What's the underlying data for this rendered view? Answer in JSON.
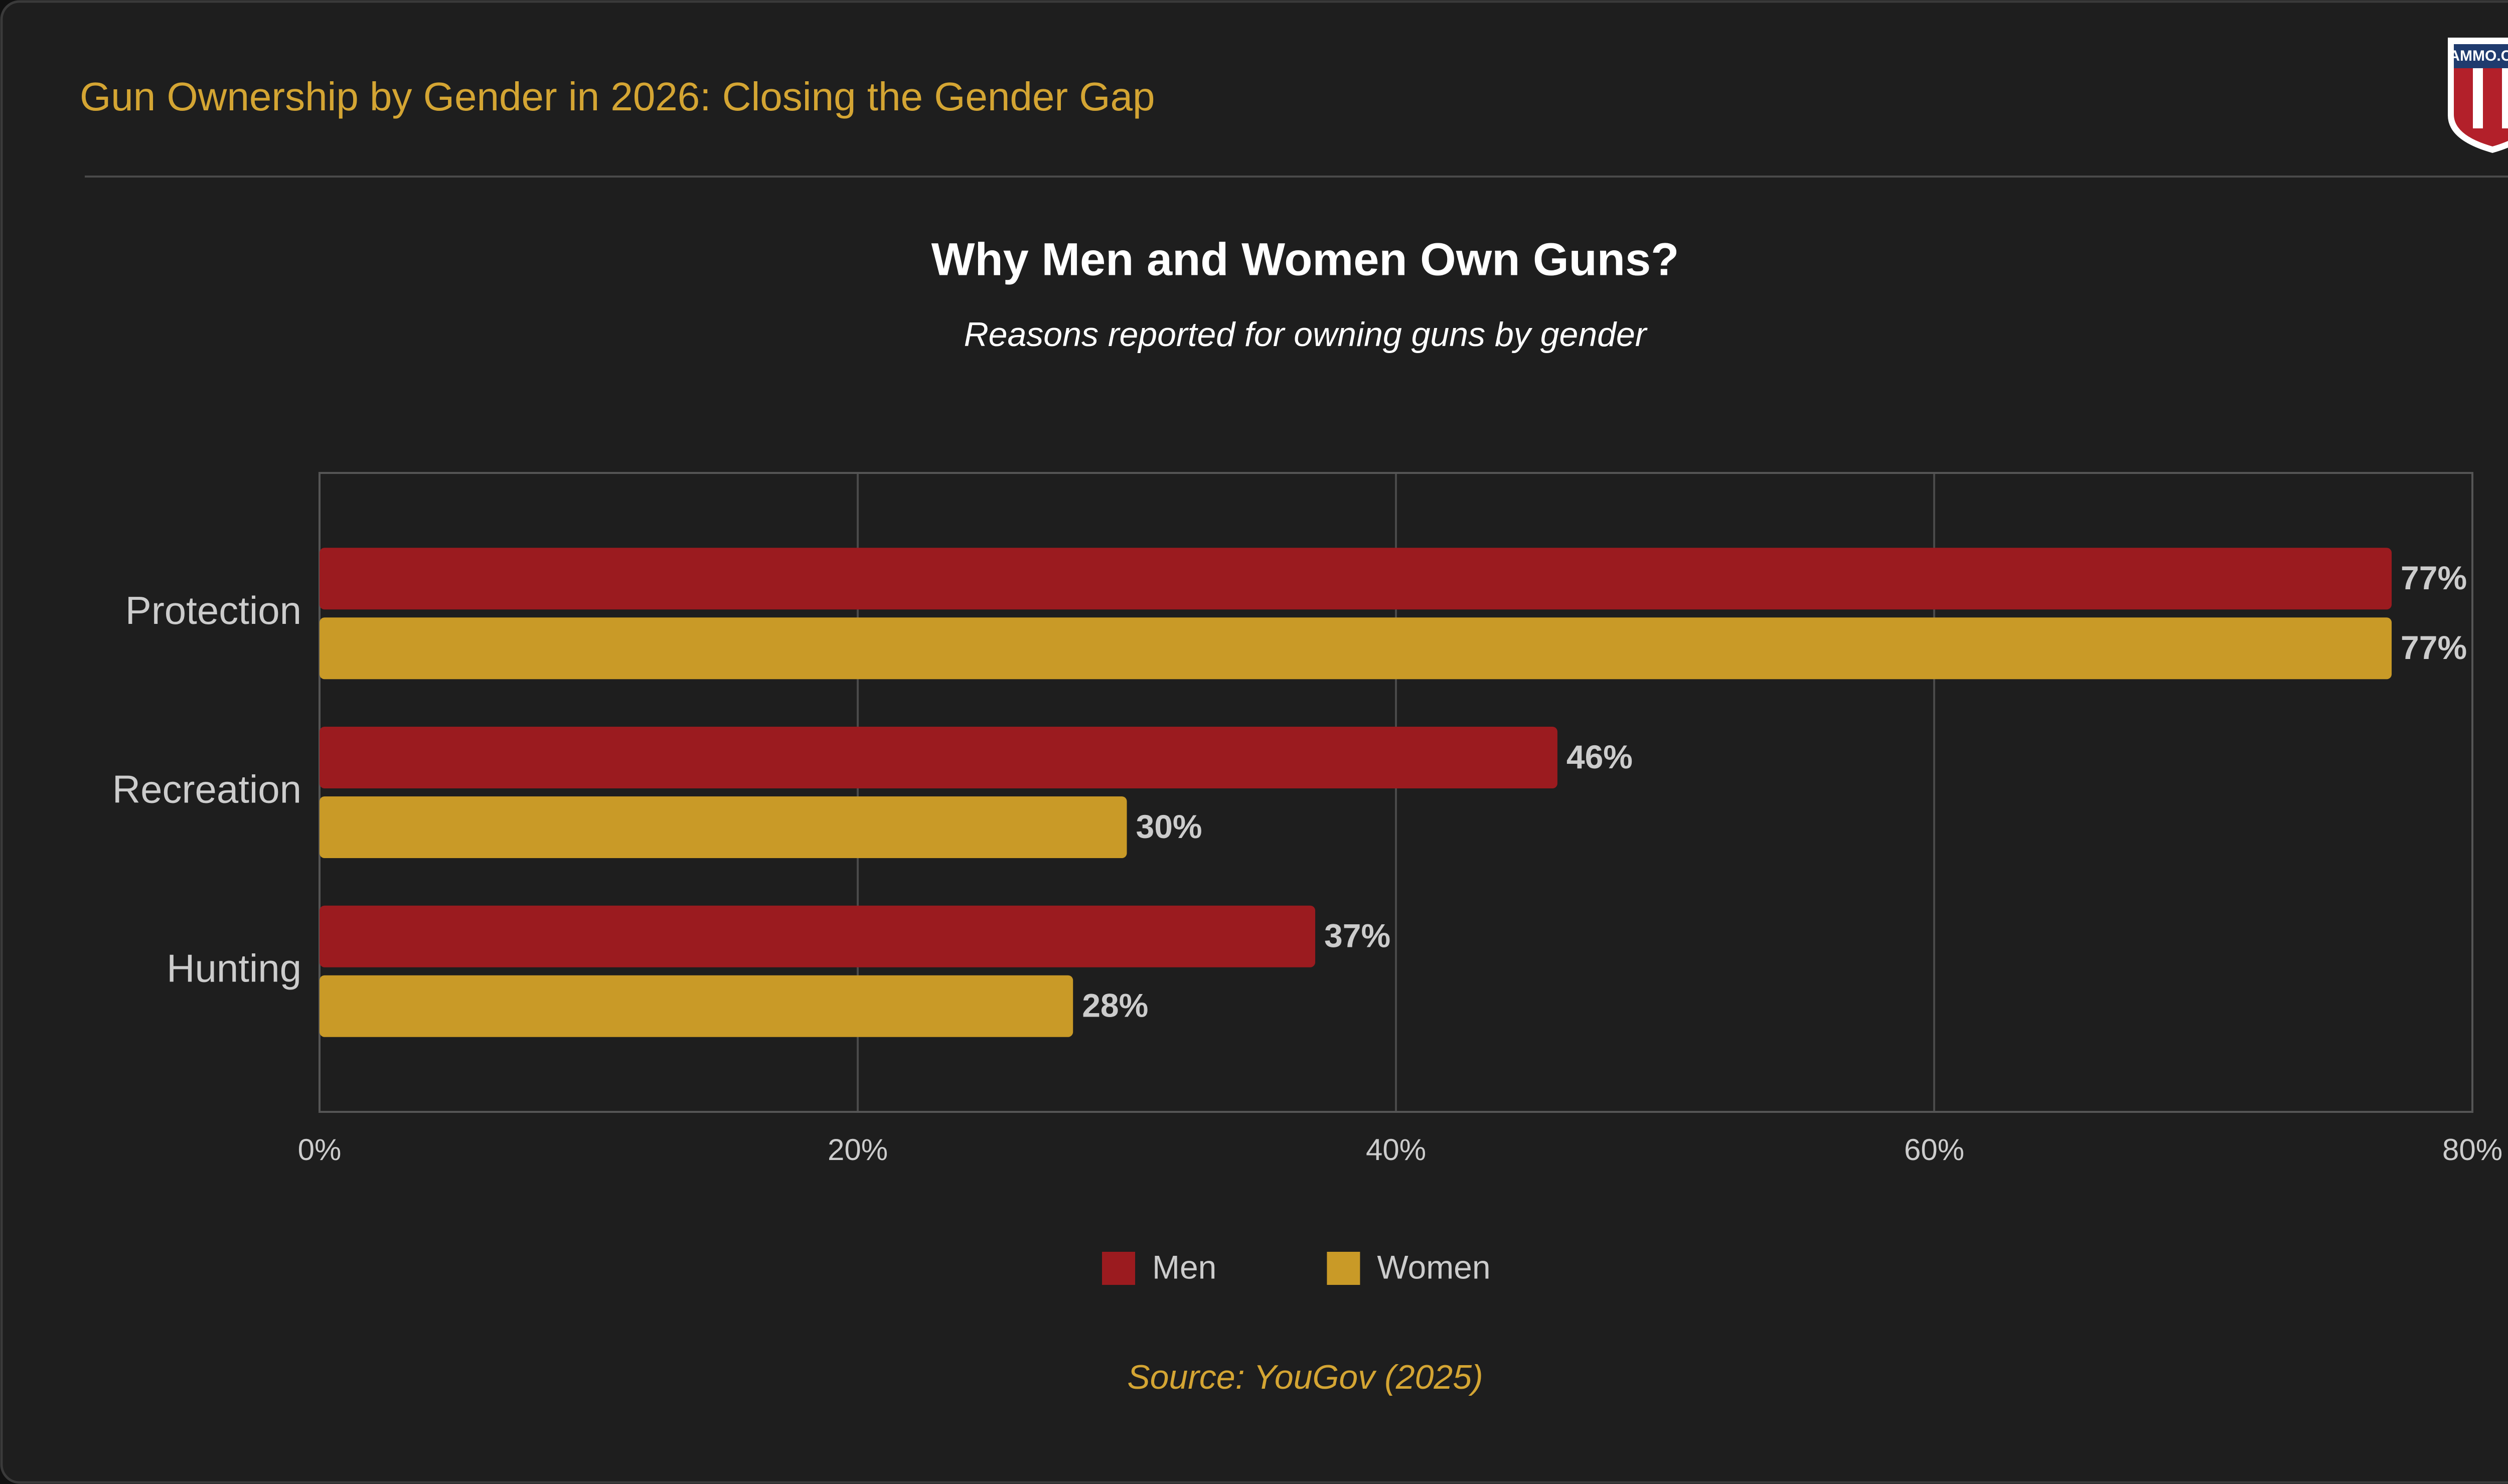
{
  "header": {
    "title": "Gun Ownership by Gender in 2026: Closing the Gender Gap",
    "logo": "AMMO.COM"
  },
  "chart_data": {
    "type": "hbar",
    "title": "Why Men and Women Own Guns?",
    "subtitle": "Reasons reported for owning guns by gender",
    "categories": [
      "Protection",
      "Recreation",
      "Hunting"
    ],
    "series": [
      {
        "name": "Men",
        "color": "#9b1b1f",
        "values": [
          77,
          46,
          37
        ],
        "value_labels": [
          "77%",
          "46%",
          "37%"
        ]
      },
      {
        "name": "Women",
        "color": "#c99a27",
        "values": [
          77,
          30,
          28
        ],
        "value_labels": [
          "77%",
          "30%",
          "28%"
        ]
      }
    ],
    "xlim": [
      0,
      80
    ],
    "xticks": [
      {
        "value": 0,
        "label": "0%"
      },
      {
        "value": 20,
        "label": "20%"
      },
      {
        "value": 40,
        "label": "40%"
      },
      {
        "value": 60,
        "label": "60%"
      },
      {
        "value": 80,
        "label": "80%"
      }
    ],
    "grid": true,
    "legend": "bottom",
    "source": "Source: YouGov (2025)"
  }
}
